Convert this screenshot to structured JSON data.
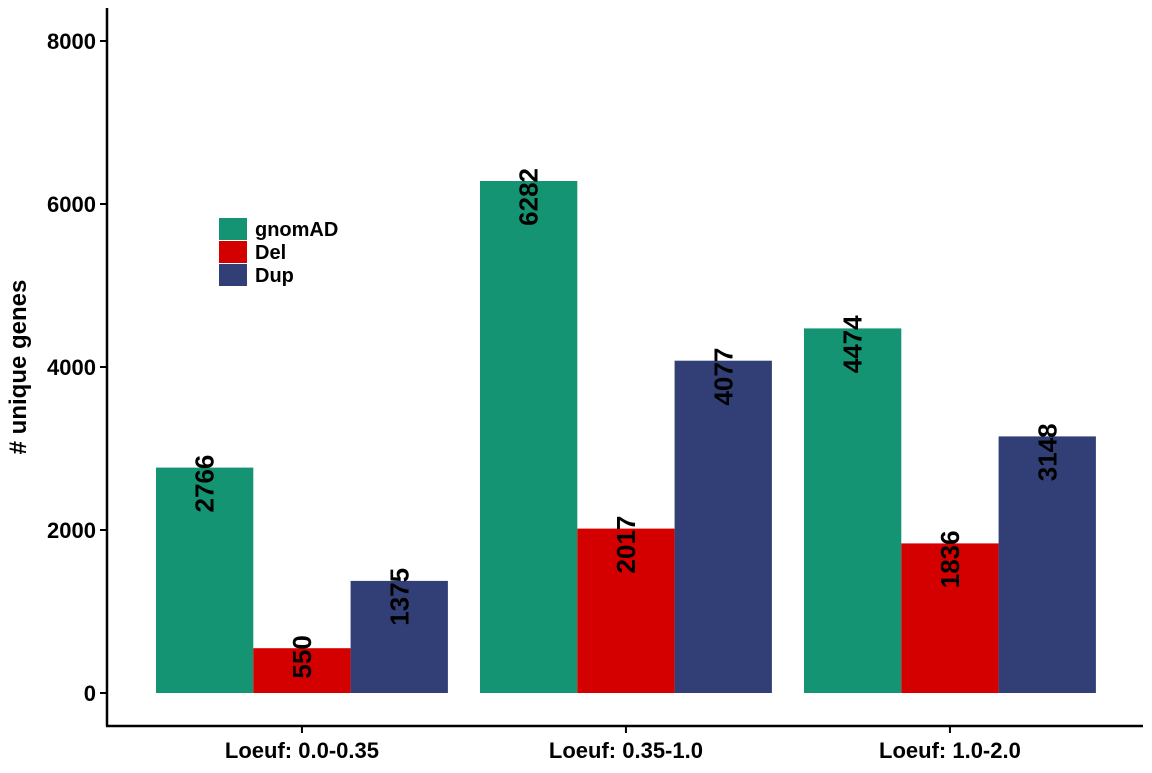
{
  "chart_data": {
    "type": "bar",
    "title": "",
    "xlabel": "",
    "ylabel": "# unique genes",
    "ylim": [
      0,
      8000
    ],
    "yticks": [
      0,
      2000,
      4000,
      6000,
      8000
    ],
    "categories": [
      "Loeuf: 0.0-0.35",
      "Loeuf: 0.35-1.0",
      "Loeuf: 1.0-2.0"
    ],
    "series": [
      {
        "name": "gnomAD",
        "color": "#159473",
        "values": [
          2766,
          6282,
          4474
        ]
      },
      {
        "name": "Del",
        "color": "#d40000",
        "values": [
          550,
          2017,
          1836
        ]
      },
      {
        "name": "Dup",
        "color": "#313f76",
        "values": [
          1375,
          4077,
          3148
        ]
      }
    ],
    "data_labels": true,
    "grid": false,
    "legend_position": "top-left"
  }
}
